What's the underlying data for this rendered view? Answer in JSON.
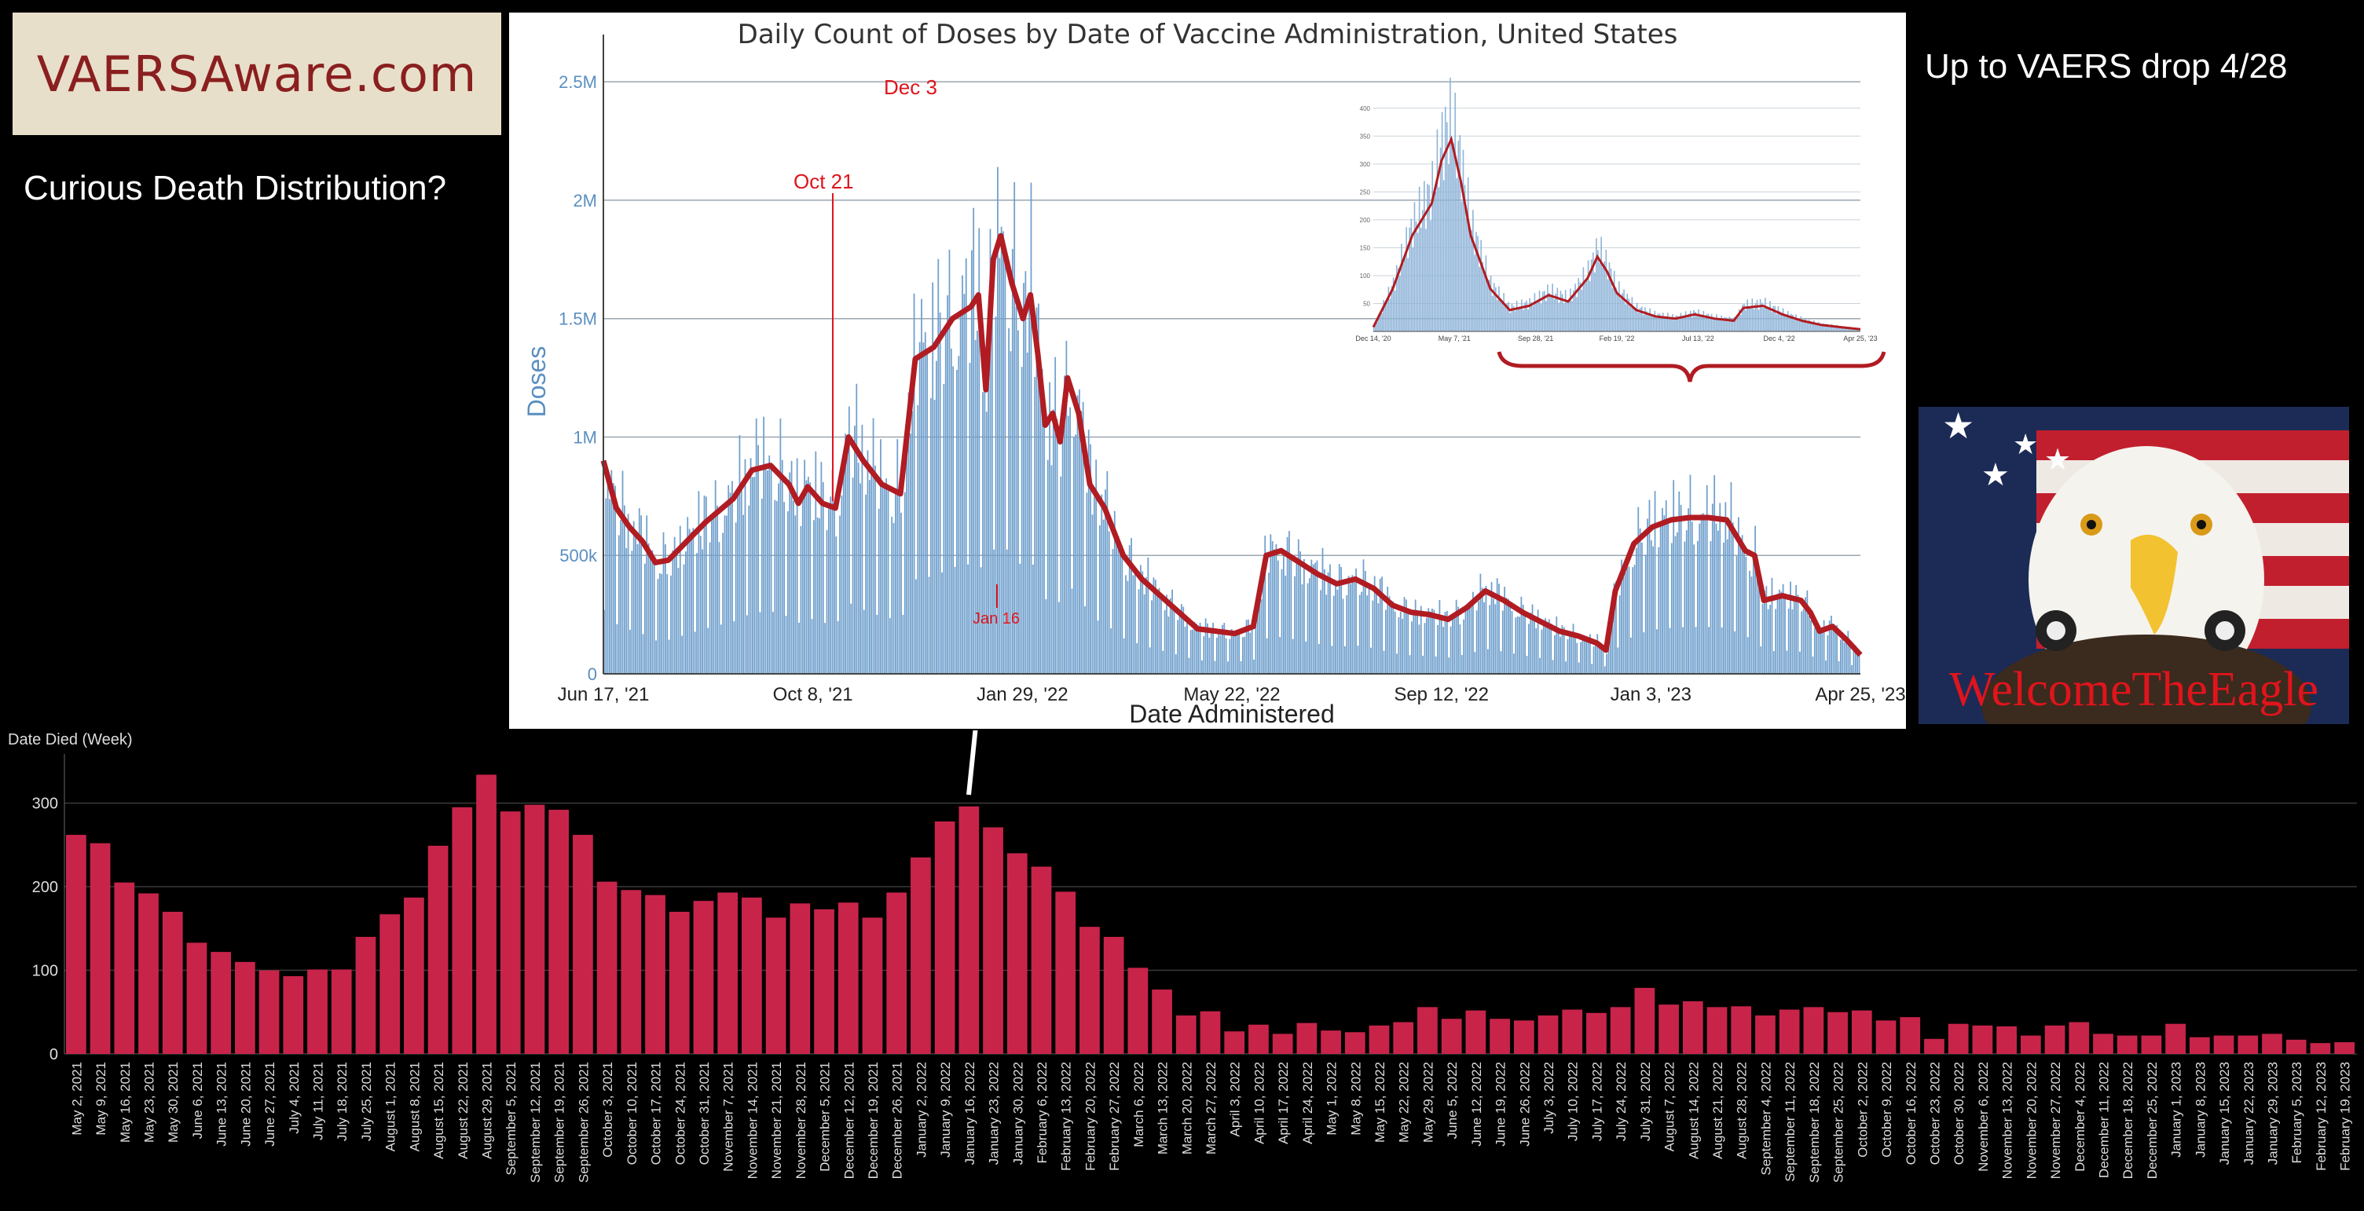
{
  "logo": {
    "text": "VAERSAware.com"
  },
  "headline": "Curious Death Distribution?",
  "drop_note": "Up to VAERS drop 4/28",
  "watermark": "WelcomeTheEagle",
  "colors": {
    "bars_dark": "#c8244a",
    "bars_light": "#6f9fcc",
    "avg_line": "#b01c22",
    "annotation": "#e0141c"
  },
  "annotations": {
    "oct21": "Oct 21",
    "dec3": "Dec 3",
    "jan16": "Jan 16"
  },
  "chart_data": [
    {
      "type": "bar",
      "title": "Daily Count of Doses by Date of Vaccine Administration, United States",
      "xlabel": "Date Administered",
      "ylabel": "Doses",
      "ylim": [
        0,
        2600000
      ],
      "y_ticks": [
        {
          "v": 0,
          "label": "0"
        },
        {
          "v": 500000,
          "label": "500k"
        },
        {
          "v": 1000000,
          "label": "1M"
        },
        {
          "v": 1500000,
          "label": "1.5M"
        },
        {
          "v": 2000000,
          "label": "2M"
        },
        {
          "v": 2500000,
          "label": "2.5M"
        }
      ],
      "x_ticks": [
        "Jun 17, '21",
        "Oct 8, '21",
        "Jan 29, '22",
        "May 22, '22",
        "Sep 12, '22",
        "Jan 3, '23",
        "Apr 25, '23"
      ],
      "x_range_days": 677,
      "moving_average": [
        [
          0,
          900000
        ],
        [
          7,
          700000
        ],
        [
          14,
          620000
        ],
        [
          21,
          560000
        ],
        [
          28,
          470000
        ],
        [
          35,
          480000
        ],
        [
          45,
          560000
        ],
        [
          55,
          640000
        ],
        [
          70,
          740000
        ],
        [
          80,
          860000
        ],
        [
          90,
          880000
        ],
        [
          100,
          800000
        ],
        [
          105,
          720000
        ],
        [
          110,
          790000
        ],
        [
          118,
          720000
        ],
        [
          125,
          700000
        ],
        [
          132,
          1000000
        ],
        [
          140,
          900000
        ],
        [
          150,
          800000
        ],
        [
          160,
          760000
        ],
        [
          168,
          1330000
        ],
        [
          178,
          1380000
        ],
        [
          188,
          1500000
        ],
        [
          198,
          1550000
        ],
        [
          202,
          1600000
        ],
        [
          206,
          1200000
        ],
        [
          210,
          1750000
        ],
        [
          214,
          1850000
        ],
        [
          220,
          1650000
        ],
        [
          226,
          1500000
        ],
        [
          230,
          1600000
        ],
        [
          234,
          1350000
        ],
        [
          238,
          1050000
        ],
        [
          242,
          1100000
        ],
        [
          246,
          980000
        ],
        [
          250,
          1250000
        ],
        [
          256,
          1100000
        ],
        [
          262,
          800000
        ],
        [
          270,
          700000
        ],
        [
          280,
          500000
        ],
        [
          290,
          400000
        ],
        [
          300,
          330000
        ],
        [
          310,
          260000
        ],
        [
          320,
          190000
        ],
        [
          340,
          170000
        ],
        [
          350,
          200000
        ],
        [
          357,
          500000
        ],
        [
          365,
          520000
        ],
        [
          375,
          470000
        ],
        [
          385,
          420000
        ],
        [
          395,
          380000
        ],
        [
          405,
          400000
        ],
        [
          415,
          360000
        ],
        [
          425,
          290000
        ],
        [
          435,
          260000
        ],
        [
          445,
          250000
        ],
        [
          455,
          230000
        ],
        [
          465,
          280000
        ],
        [
          475,
          350000
        ],
        [
          485,
          310000
        ],
        [
          495,
          260000
        ],
        [
          505,
          220000
        ],
        [
          515,
          180000
        ],
        [
          525,
          160000
        ],
        [
          535,
          130000
        ],
        [
          540,
          100000
        ],
        [
          545,
          350000
        ],
        [
          555,
          550000
        ],
        [
          565,
          620000
        ],
        [
          575,
          650000
        ],
        [
          585,
          660000
        ],
        [
          595,
          660000
        ],
        [
          605,
          650000
        ],
        [
          615,
          520000
        ],
        [
          620,
          500000
        ],
        [
          625,
          310000
        ],
        [
          635,
          330000
        ],
        [
          645,
          310000
        ],
        [
          650,
          260000
        ],
        [
          655,
          180000
        ],
        [
          662,
          200000
        ],
        [
          670,
          140000
        ],
        [
          677,
          80000
        ]
      ],
      "inset": {
        "x_ticks": [
          "Dec 14, '20",
          "May 7, '21",
          "Sep 28, '21",
          "Feb 19, '22",
          "Jul 13, '22",
          "Dec 4, '22",
          "Apr 25, '23"
        ],
        "y_ticks": [
          "50",
          "100",
          "150",
          "200",
          "250",
          "300",
          "350",
          "400"
        ]
      }
    },
    {
      "type": "bar",
      "title": "Date Died (Week)",
      "ylim": [
        0,
        340
      ],
      "y_ticks": [
        0,
        100,
        200,
        300
      ],
      "categories": [
        "May 2, 2021",
        "May 9, 2021",
        "May 16, 2021",
        "May 23, 2021",
        "May 30, 2021",
        "June 6, 2021",
        "June 13, 2021",
        "June 20, 2021",
        "June 27, 2021",
        "July 4, 2021",
        "July 11, 2021",
        "July 18, 2021",
        "July 25, 2021",
        "August 1, 2021",
        "August 8, 2021",
        "August 15, 2021",
        "August 22, 2021",
        "August 29, 2021",
        "September 5, 2021",
        "September 12, 2021",
        "September 19, 2021",
        "September 26, 2021",
        "October 3, 2021",
        "October 10, 2021",
        "October 17, 2021",
        "October 24, 2021",
        "October 31, 2021",
        "November 7, 2021",
        "November 14, 2021",
        "November 21, 2021",
        "November 28, 2021",
        "December 5, 2021",
        "December 12, 2021",
        "December 19, 2021",
        "December 26, 2021",
        "January 2, 2022",
        "January 9, 2022",
        "January 16, 2022",
        "January 23, 2022",
        "January 30, 2022",
        "February 6, 2022",
        "February 13, 2022",
        "February 20, 2022",
        "February 27, 2022",
        "March 6, 2022",
        "March 13, 2022",
        "March 20, 2022",
        "March 27, 2022",
        "April 3, 2022",
        "April 10, 2022",
        "April 17, 2022",
        "April 24, 2022",
        "May 1, 2022",
        "May 8, 2022",
        "May 15, 2022",
        "May 22, 2022",
        "May 29, 2022",
        "June 5, 2022",
        "June 12, 2022",
        "June 19, 2022",
        "June 26, 2022",
        "July 3, 2022",
        "July 10, 2022",
        "July 17, 2022",
        "July 24, 2022",
        "July 31, 2022",
        "August 7, 2022",
        "August 14, 2022",
        "August 21, 2022",
        "August 28, 2022",
        "September 4, 2022",
        "September 11, 2022",
        "September 18, 2022",
        "September 25, 2022",
        "October 2, 2022",
        "October 9, 2022",
        "October 16, 2022",
        "October 23, 2022",
        "October 30, 2022",
        "November 6, 2022",
        "November 13, 2022",
        "November 20, 2022",
        "November 27, 2022",
        "December 4, 2022",
        "December 11, 2022",
        "December 18, 2022",
        "December 25, 2022",
        "January 1, 2023",
        "January 8, 2023",
        "January 15, 2023",
        "January 22, 2023",
        "January 29, 2023",
        "February 5, 2023",
        "February 12, 2023",
        "February 19, 2023"
      ],
      "values": [
        262,
        252,
        205,
        192,
        170,
        133,
        122,
        110,
        100,
        93,
        101,
        101,
        140,
        167,
        187,
        249,
        295,
        334,
        290,
        298,
        292,
        262,
        206,
        196,
        190,
        170,
        183,
        193,
        187,
        163,
        180,
        173,
        181,
        163,
        193,
        235,
        278,
        296,
        271,
        240,
        224,
        194,
        152,
        140,
        103,
        77,
        46,
        51,
        27,
        35,
        24,
        37,
        28,
        26,
        34,
        38,
        56,
        42,
        52,
        42,
        40,
        46,
        53,
        49,
        56,
        79,
        59,
        63,
        56,
        57,
        46,
        53,
        56,
        50,
        52,
        40,
        44,
        18,
        36,
        34,
        33,
        22,
        34,
        38,
        24,
        22,
        22,
        36,
        20,
        22,
        22,
        24,
        17,
        13,
        14
      ]
    }
  ]
}
